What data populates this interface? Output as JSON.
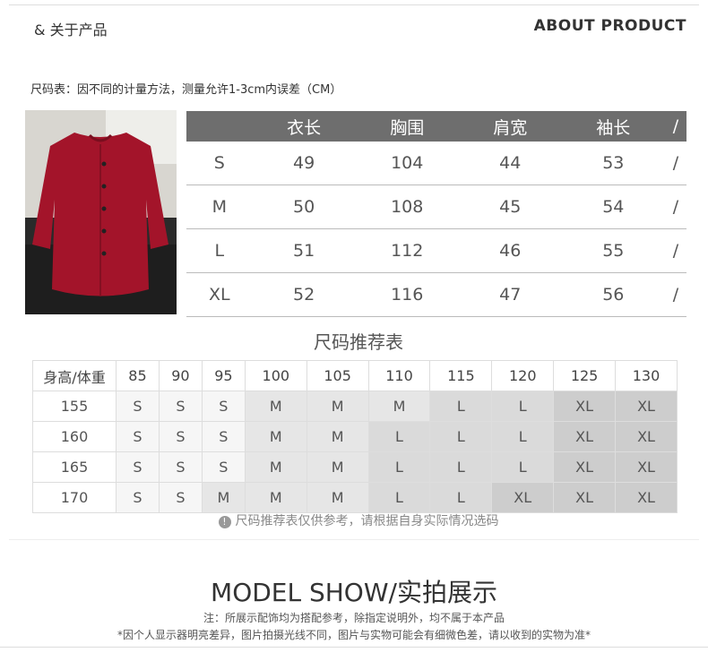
{
  "header": {
    "left": "& 关于产品",
    "right": "ABOUT PRODUCT"
  },
  "note": "尺码表：因不同的计量方法，测量允许1-3cm内误差（CM）",
  "size_table": {
    "headers": [
      "",
      "衣长",
      "胸围",
      "肩宽",
      "袖长",
      "/"
    ],
    "rows": [
      [
        "S",
        "49",
        "104",
        "44",
        "53",
        "/"
      ],
      [
        "M",
        "50",
        "108",
        "45",
        "54",
        "/"
      ],
      [
        "L",
        "51",
        "112",
        "46",
        "55",
        "/"
      ],
      [
        "XL",
        "52",
        "116",
        "47",
        "56",
        "/"
      ]
    ]
  },
  "rec_title": "尺码推荐表",
  "rec_table": {
    "headers": [
      "身高/体重",
      "85",
      "90",
      "95",
      "100",
      "105",
      "110",
      "115",
      "120",
      "125",
      "130"
    ],
    "rows": [
      [
        "155",
        "S",
        "S",
        "S",
        "M",
        "M",
        "M",
        "L",
        "L",
        "XL",
        "XL"
      ],
      [
        "160",
        "S",
        "S",
        "S",
        "M",
        "M",
        "L",
        "L",
        "L",
        "XL",
        "XL"
      ],
      [
        "165",
        "S",
        "S",
        "S",
        "M",
        "M",
        "L",
        "L",
        "L",
        "XL",
        "XL"
      ],
      [
        "170",
        "S",
        "S",
        "M",
        "M",
        "M",
        "L",
        "L",
        "XL",
        "XL",
        "XL"
      ]
    ]
  },
  "tip": {
    "icon": "!",
    "text": "尺码推荐表仅供参考，请根据自身实际情况选码"
  },
  "model_title": "MODEL SHOW/实拍展示",
  "note1": "注：所展示配饰均为搭配参考，除指定说明外，均不属于本产品",
  "note2": "*因个人显示器明亮差异，图片拍摄光线不同，图片与实物可能会有细微色差，请以收到的实物为准*",
  "colors": {
    "header_bg": "#6e6e6e",
    "garment": "#a3142a"
  }
}
